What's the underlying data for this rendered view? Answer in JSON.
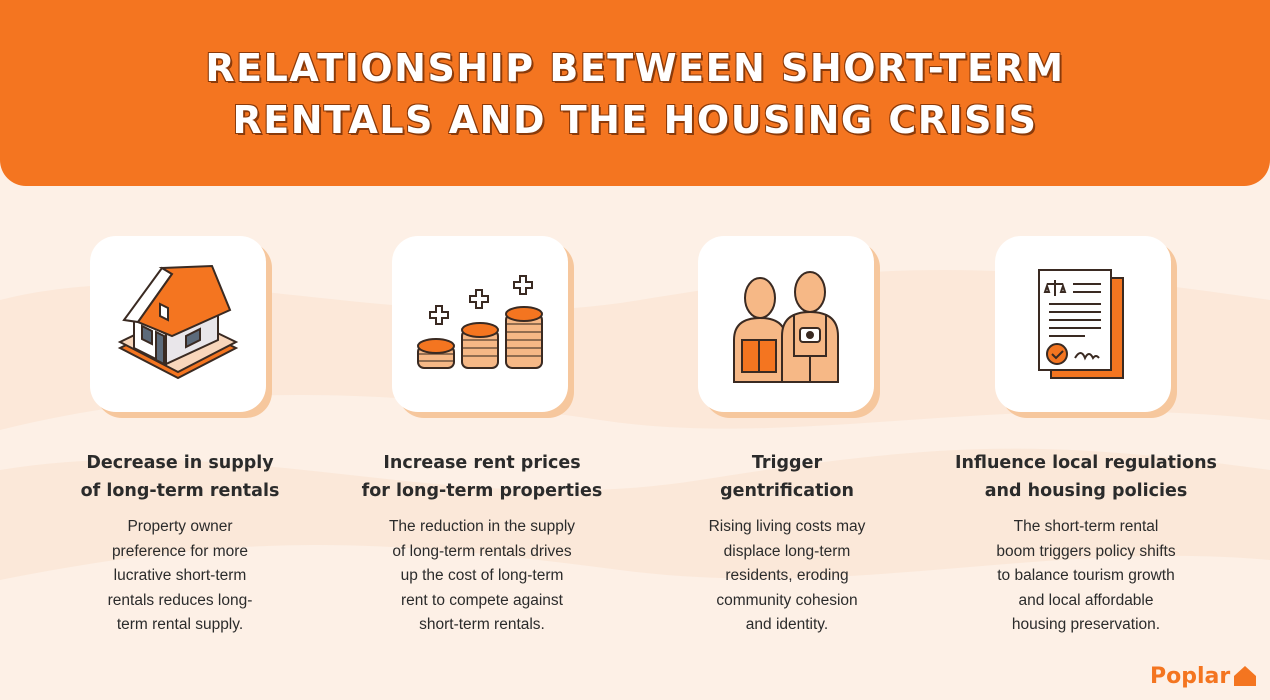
{
  "header": {
    "title_line1": "RELATIONSHIP BETWEEN SHORT-TERM",
    "title_line2": "RENTALS AND THE HOUSING CRISIS"
  },
  "columns": [
    {
      "icon": "house-icon",
      "title": [
        "Decrease in supply",
        "of long-term rentals"
      ],
      "desc": [
        "Property owner",
        "preference for more",
        "lucrative short-term",
        "rentals reduces long-",
        "term rental supply."
      ]
    },
    {
      "icon": "coin-stacks-icon",
      "title": [
        "Increase rent prices",
        "for long-term properties"
      ],
      "desc": [
        "The reduction in the supply",
        "of long-term rentals drives",
        "up the cost of long-term",
        "rent to compete against",
        "short-term rentals."
      ]
    },
    {
      "icon": "people-icon",
      "title": [
        "Trigger",
        "gentrification"
      ],
      "desc": [
        "Rising living costs may",
        "displace long-term",
        "residents, eroding",
        "community cohesion",
        "and identity."
      ]
    },
    {
      "icon": "legal-document-icon",
      "title": [
        "Influence local regulations",
        "and housing policies"
      ],
      "desc": [
        "The short-term rental",
        "boom triggers policy shifts",
        "to balance tourism growth",
        "and local affordable",
        "housing preservation."
      ]
    }
  ],
  "logo": {
    "text": "Poplar",
    "icon": "house-logo-icon"
  },
  "colors": {
    "accent": "#f47520",
    "background": "#fdf0e6",
    "card_shadow": "#f6c79d",
    "text": "#2b2b2b"
  }
}
